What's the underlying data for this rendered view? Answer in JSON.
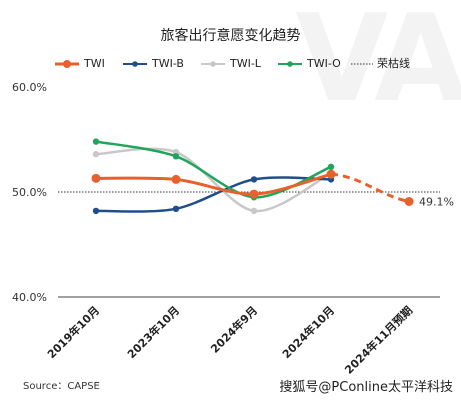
{
  "chart_data": {
    "type": "line",
    "title": "旅客出行意愿变化趋势",
    "categories": [
      "2019年10月",
      "2023年10月",
      "2024年9月",
      "2024年10月",
      "2024年11月预期"
    ],
    "ylim": [
      40,
      60
    ],
    "yticks": [
      "40.0%",
      "50.0%",
      "60.0%"
    ],
    "series": [
      {
        "name": "TWI",
        "color": "#e8612c",
        "values": [
          51.3,
          51.2,
          49.8,
          51.7,
          49.1
        ],
        "style": "smooth-solid-then-dashed-forecast"
      },
      {
        "name": "TWI-B",
        "color": "#1f4e8c",
        "values": [
          48.2,
          48.4,
          51.2,
          51.2,
          null
        ],
        "style": "smooth"
      },
      {
        "name": "TWI-L",
        "color": "#c8c8c8",
        "values": [
          53.6,
          53.8,
          48.2,
          51.8,
          null
        ],
        "style": "smooth"
      },
      {
        "name": "TWI-O",
        "color": "#21a55b",
        "values": [
          54.8,
          53.4,
          49.5,
          52.4,
          null
        ],
        "style": "smooth"
      }
    ],
    "reference_line": {
      "name": "荣枯线",
      "value": 50.0,
      "style": "dotted",
      "color": "#333333"
    },
    "annotations": [
      {
        "text": "49.1%",
        "series": "TWI",
        "category_index": 4
      }
    ],
    "legend": "top",
    "grid": false
  },
  "footer": {
    "source": "Source：CAPSE",
    "watermark": "搜狐号@PConline太平洋科技"
  },
  "background_text": "VA"
}
